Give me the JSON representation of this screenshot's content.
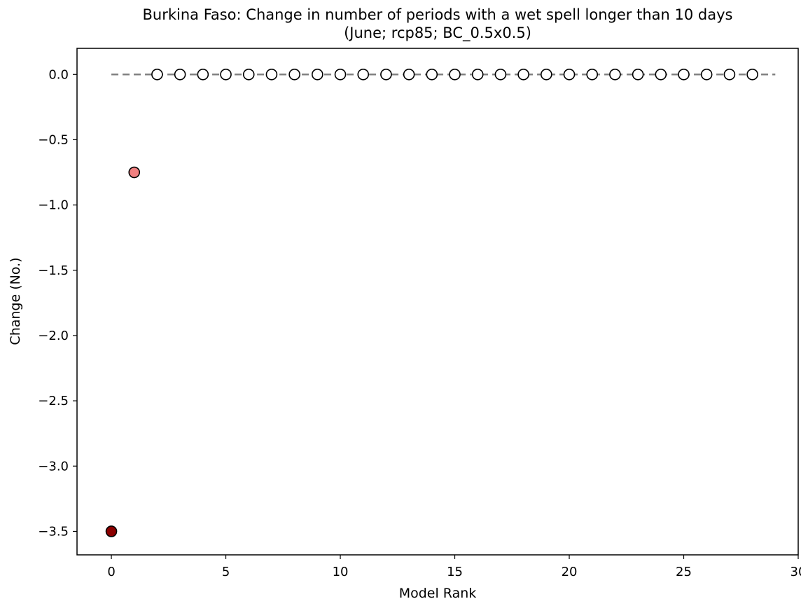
{
  "chart_data": {
    "type": "scatter",
    "title_line1": "Burkina Faso: Change in number of periods with a wet spell longer than 10 days",
    "title_line2": "(June; rcp85; BC_0.5x0.5)",
    "xlabel": "Model Rank",
    "ylabel": "Change (No.)",
    "xlim": [
      -1.5,
      30
    ],
    "ylim": [
      -3.68,
      0.2
    ],
    "xticks": [
      0,
      5,
      10,
      15,
      20,
      25,
      30
    ],
    "xtick_labels": [
      "0",
      "5",
      "10",
      "15",
      "20",
      "25",
      "30"
    ],
    "yticks": [
      0.0,
      -0.5,
      -1.0,
      -1.5,
      -2.0,
      -2.5,
      -3.0,
      -3.5
    ],
    "ytick_labels": [
      "0.0",
      "−0.5",
      "−1.0",
      "−1.5",
      "−2.0",
      "−2.5",
      "−3.0",
      "−3.5"
    ],
    "grid": false,
    "reference_line": {
      "y": 0.0,
      "x_start": 0,
      "x_end": 29,
      "style": "dashed",
      "color": "#808080"
    },
    "points": [
      {
        "x": 0,
        "y": -3.5,
        "color": "#8b0000"
      },
      {
        "x": 1,
        "y": -0.75,
        "color": "#f08080"
      },
      {
        "x": 2,
        "y": 0.0,
        "color": "#ffffff"
      },
      {
        "x": 3,
        "y": 0.0,
        "color": "#ffffff"
      },
      {
        "x": 4,
        "y": 0.0,
        "color": "#ffffff"
      },
      {
        "x": 5,
        "y": 0.0,
        "color": "#ffffff"
      },
      {
        "x": 6,
        "y": 0.0,
        "color": "#ffffff"
      },
      {
        "x": 7,
        "y": 0.0,
        "color": "#ffffff"
      },
      {
        "x": 8,
        "y": 0.0,
        "color": "#ffffff"
      },
      {
        "x": 9,
        "y": 0.0,
        "color": "#ffffff"
      },
      {
        "x": 10,
        "y": 0.0,
        "color": "#ffffff"
      },
      {
        "x": 11,
        "y": 0.0,
        "color": "#ffffff"
      },
      {
        "x": 12,
        "y": 0.0,
        "color": "#ffffff"
      },
      {
        "x": 13,
        "y": 0.0,
        "color": "#ffffff"
      },
      {
        "x": 14,
        "y": 0.0,
        "color": "#ffffff"
      },
      {
        "x": 15,
        "y": 0.0,
        "color": "#ffffff"
      },
      {
        "x": 16,
        "y": 0.0,
        "color": "#ffffff"
      },
      {
        "x": 17,
        "y": 0.0,
        "color": "#ffffff"
      },
      {
        "x": 18,
        "y": 0.0,
        "color": "#ffffff"
      },
      {
        "x": 19,
        "y": 0.0,
        "color": "#ffffff"
      },
      {
        "x": 20,
        "y": 0.0,
        "color": "#ffffff"
      },
      {
        "x": 21,
        "y": 0.0,
        "color": "#ffffff"
      },
      {
        "x": 22,
        "y": 0.0,
        "color": "#ffffff"
      },
      {
        "x": 23,
        "y": 0.0,
        "color": "#ffffff"
      },
      {
        "x": 24,
        "y": 0.0,
        "color": "#ffffff"
      },
      {
        "x": 25,
        "y": 0.0,
        "color": "#ffffff"
      },
      {
        "x": 26,
        "y": 0.0,
        "color": "#ffffff"
      },
      {
        "x": 27,
        "y": 0.0,
        "color": "#ffffff"
      },
      {
        "x": 28,
        "y": 0.0,
        "color": "#ffffff"
      }
    ]
  }
}
